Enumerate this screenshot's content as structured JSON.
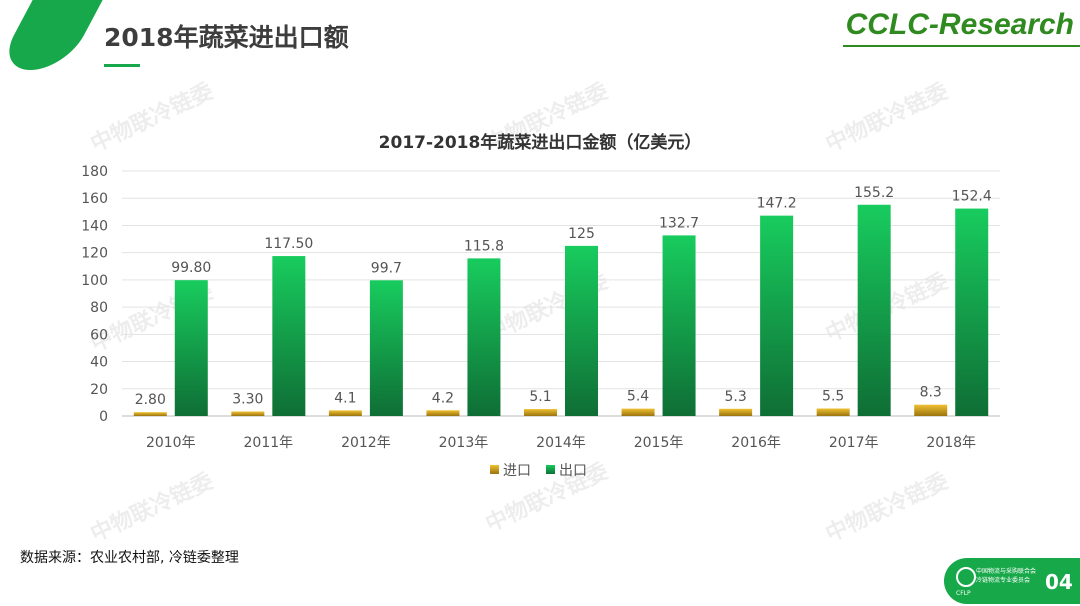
{
  "header": {
    "title": "2018年蔬菜进出口额",
    "brand": "CCLC-Research"
  },
  "watermark": "中物联冷链委",
  "source": "数据来源：农业农村部, 冷链委整理",
  "footer": {
    "org_line1": "中国物流与采购联合会",
    "org_line2": "冷链物流专业委员会",
    "logo": "CFLP",
    "page": "04"
  },
  "colors": {
    "import": "#d9a520",
    "export": "#18c25a",
    "accent": "#16a84a"
  },
  "chart_data": {
    "type": "bar",
    "title": "2017-2018年蔬菜进出口金额（亿美元）",
    "categories": [
      "2010年",
      "2011年",
      "2012年",
      "2013年",
      "2014年",
      "2015年",
      "2016年",
      "2017年",
      "2018年"
    ],
    "series": [
      {
        "name": "进口",
        "values": [
          2.8,
          3.3,
          4.1,
          4.2,
          5.1,
          5.4,
          5.3,
          5.5,
          8.3
        ],
        "labels": [
          "2.80",
          "3.30",
          "4.1",
          "4.2",
          "5.1",
          "5.4",
          "5.3",
          "5.5",
          "8.3"
        ]
      },
      {
        "name": "出口",
        "values": [
          99.8,
          117.5,
          99.7,
          115.8,
          125,
          132.7,
          147.2,
          155.2,
          152.4
        ],
        "labels": [
          "99.80",
          "117.50",
          "99.7",
          "115.8",
          "125",
          "132.7",
          "147.2",
          "155.2",
          "152.4"
        ]
      }
    ],
    "ylim": [
      0,
      180
    ],
    "yticks": [
      0,
      20,
      40,
      60,
      80,
      100,
      120,
      140,
      160,
      180
    ],
    "grid": true,
    "legend": "bottom"
  }
}
